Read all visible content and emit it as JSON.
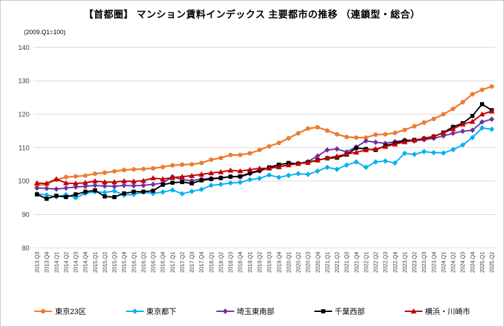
{
  "title": "【首都圏】 マンション賃料インデックス 主要都市の推移 （連鎖型・総合）",
  "subtitle": "(2009.Q1=100)",
  "colors": {
    "grid": "#D9D9D9",
    "tick_text": "#404040",
    "tokyo23": "#ED7D31",
    "tokyo_tama": "#00B0F0",
    "saitama": "#7030A0",
    "chiba": "#000000",
    "yokohama_kawasaki": "#C00000"
  },
  "chart_data": {
    "type": "line",
    "title": "【首都圏】 マンション賃料インデックス 主要都市の推移 （連鎖型・総合）",
    "subtitle": "(2009.Q1=100)",
    "ylim": [
      80,
      140
    ],
    "ytick_interval": 10,
    "grid": "horizontal",
    "legend_position": "bottom",
    "x": [
      "2013.Q3",
      "2013.Q4",
      "2014.Q1",
      "2014.Q2",
      "2014.Q3",
      "2014.Q4",
      "2015.Q1",
      "2015.Q2",
      "2015.Q3",
      "2015.Q4",
      "2016.Q1",
      "2016.Q2",
      "2016.Q3",
      "2016.Q4",
      "2017.Q1",
      "2017.Q2",
      "2017.Q3",
      "2017.Q4",
      "2018.Q1",
      "2018.Q2",
      "2018.Q3",
      "2018.Q4",
      "2019.Q1",
      "2019.Q2",
      "2019.Q3",
      "2019.Q4",
      "2020.Q1",
      "2020.Q2",
      "2020.Q3",
      "2020.Q4",
      "2021.Q1",
      "2021.Q2",
      "2021.Q3",
      "2021.Q4",
      "2022.Q1",
      "2022.Q2",
      "2022.Q3",
      "2022.Q4",
      "2023.Q1",
      "2023.Q2",
      "2023.Q3",
      "2023.Q4",
      "2024.Q1",
      "2024.Q2",
      "2024.Q3",
      "2024.Q4",
      "2025.Q1",
      "2025.Q2"
    ],
    "series": [
      {
        "name": "東京23区",
        "color": "#ED7D31",
        "marker": "circle",
        "values": [
          98.7,
          99.1,
          100.4,
          101.2,
          101.4,
          101.6,
          102.2,
          102.5,
          102.9,
          103.3,
          103.5,
          103.6,
          103.8,
          104.2,
          104.7,
          104.9,
          105.0,
          105.4,
          106.4,
          106.9,
          107.8,
          107.8,
          108.3,
          109.3,
          110.4,
          111.4,
          112.8,
          114.3,
          115.7,
          116.1,
          115.1,
          114.0,
          113.2,
          113.0,
          113.0,
          113.9,
          114.0,
          114.4,
          115.3,
          116.4,
          117.5,
          118.6,
          120.0,
          121.6,
          123.6,
          126.0,
          127.3,
          128.3
        ]
      },
      {
        "name": "東京都下",
        "color": "#00B0F0",
        "marker": "diamond",
        "values": [
          96.2,
          95.8,
          95.3,
          95.9,
          95.0,
          96.3,
          96.8,
          96.6,
          97.0,
          95.8,
          96.0,
          96.7,
          96.3,
          96.7,
          97.3,
          96.2,
          96.9,
          97.5,
          98.7,
          99.0,
          99.4,
          99.6,
          100.4,
          100.8,
          101.8,
          101.1,
          101.7,
          102.2,
          102.0,
          103.0,
          104.1,
          103.5,
          104.8,
          105.7,
          104.1,
          105.7,
          106.0,
          105.4,
          108.3,
          108.0,
          108.8,
          108.5,
          108.4,
          109.4,
          110.8,
          113.0,
          115.9,
          115.5
        ]
      },
      {
        "name": "埼玉東南部",
        "color": "#7030A0",
        "marker": "diamond",
        "values": [
          97.9,
          97.8,
          97.6,
          97.9,
          98.2,
          98.4,
          98.7,
          98.5,
          98.4,
          98.7,
          98.6,
          98.7,
          99.0,
          99.4,
          101.3,
          100.4,
          100.1,
          100.6,
          100.8,
          101.0,
          101.3,
          101.2,
          102.2,
          103.0,
          103.9,
          104.3,
          104.9,
          105.3,
          105.8,
          107.5,
          109.3,
          109.6,
          108.7,
          110.2,
          112.0,
          111.6,
          111.3,
          111.8,
          112.2,
          112.0,
          112.4,
          112.8,
          113.5,
          114.3,
          114.9,
          115.2,
          117.7,
          118.5
        ]
      },
      {
        "name": "千葉西部",
        "color": "#000000",
        "marker": "square",
        "values": [
          96.0,
          94.7,
          95.6,
          95.2,
          96.0,
          96.8,
          97.2,
          95.4,
          95.2,
          96.3,
          96.8,
          96.8,
          97.1,
          98.9,
          99.5,
          99.7,
          99.3,
          100.2,
          100.6,
          100.9,
          101.3,
          101.4,
          102.4,
          103.2,
          104.1,
          104.9,
          105.4,
          105.2,
          105.6,
          106.3,
          106.8,
          107.0,
          107.9,
          109.9,
          109.6,
          109.3,
          110.6,
          111.3,
          112.1,
          112.3,
          112.7,
          113.3,
          114.5,
          116.2,
          117.3,
          119.5,
          123.0,
          121.2
        ]
      },
      {
        "name": "横浜・川崎市",
        "color": "#C00000",
        "marker": "triangle",
        "values": [
          99.4,
          99.3,
          100.6,
          99.4,
          99.3,
          99.5,
          100.0,
          99.7,
          99.7,
          100.0,
          99.9,
          100.1,
          100.9,
          100.6,
          101.0,
          101.3,
          101.6,
          102.0,
          102.4,
          102.7,
          103.2,
          103.0,
          103.4,
          103.8,
          103.8,
          104.2,
          104.8,
          105.2,
          105.5,
          106.2,
          106.9,
          107.4,
          108.1,
          108.6,
          109.3,
          109.6,
          110.3,
          111.0,
          111.7,
          112.2,
          112.8,
          113.4,
          114.4,
          115.6,
          117.0,
          117.8,
          120.0,
          120.9
        ]
      }
    ]
  }
}
